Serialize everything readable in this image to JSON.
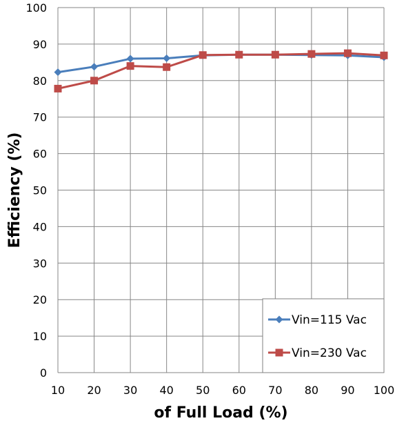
{
  "chart_data": {
    "type": "line",
    "title": "",
    "xlabel": "of Full Load (%)",
    "ylabel": "Efficiency (%)",
    "x": [
      10,
      20,
      30,
      40,
      50,
      60,
      70,
      80,
      90,
      100
    ],
    "xlim": [
      10,
      100
    ],
    "ylim": [
      0,
      100
    ],
    "xticks": [
      "10",
      "20",
      "30",
      "40",
      "50",
      "60",
      "70",
      "80",
      "90",
      "100"
    ],
    "yticks": [
      "0",
      "10",
      "20",
      "30",
      "40",
      "50",
      "60",
      "70",
      "80",
      "90",
      "100"
    ],
    "grid": true,
    "legend_position": "bottom-right",
    "series": [
      {
        "name": "Vin=115 Vac",
        "color": "#4a7ebb",
        "marker": "diamond",
        "values": [
          82.3,
          83.8,
          86.0,
          86.1,
          86.9,
          87.1,
          87.1,
          87.0,
          86.9,
          86.4
        ]
      },
      {
        "name": "Vin=230 Vac",
        "color": "#be4b48",
        "marker": "square",
        "values": [
          77.8,
          80.0,
          84.0,
          83.7,
          87.0,
          87.1,
          87.1,
          87.3,
          87.5,
          86.9
        ]
      }
    ]
  }
}
